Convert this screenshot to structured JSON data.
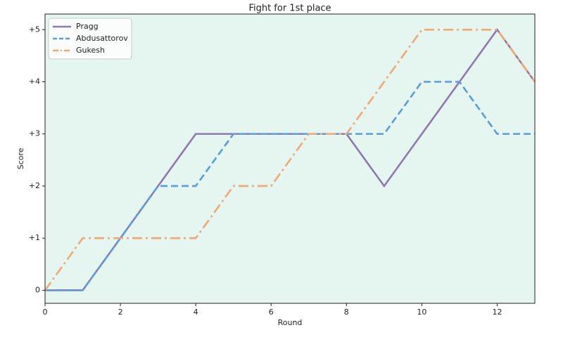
{
  "chart_data": {
    "type": "line",
    "title": "Fight for 1st place",
    "x_label": "Round",
    "y_label": "Score",
    "x": [
      0,
      1,
      2,
      3,
      4,
      5,
      6,
      7,
      8,
      9,
      10,
      11,
      12,
      13
    ],
    "series": [
      {
        "name": "Pragg",
        "color": "#8e79b0",
        "style": "solid",
        "values": [
          0,
          0,
          1,
          2,
          3,
          3,
          3,
          3,
          3,
          2,
          3,
          4,
          5,
          4
        ]
      },
      {
        "name": "Abdusattorov",
        "color": "#5b9be0",
        "style": "dashed",
        "values": [
          0,
          0,
          1,
          2,
          2,
          3,
          3,
          3,
          3,
          3,
          4,
          4,
          3,
          3
        ]
      },
      {
        "name": "Gukesh",
        "color": "#f0a875",
        "style": "dashdot",
        "values": [
          0,
          1,
          1,
          1,
          1,
          2,
          2,
          3,
          3,
          4,
          5,
          5,
          5,
          4
        ]
      }
    ],
    "xlim": [
      0,
      13
    ],
    "xticks": [
      0,
      2,
      4,
      6,
      8,
      10,
      12
    ],
    "ylim": [
      -0.25,
      5.3
    ],
    "yticks": [
      0,
      {
        "value": 1,
        "label": "+1"
      },
      {
        "value": 2,
        "label": "+2"
      },
      {
        "value": 3,
        "label": "+3"
      },
      {
        "value": 4,
        "label": "+4"
      },
      {
        "value": 5,
        "label": "+5"
      }
    ],
    "background": "#e5f5ef",
    "legend": "upper left"
  }
}
